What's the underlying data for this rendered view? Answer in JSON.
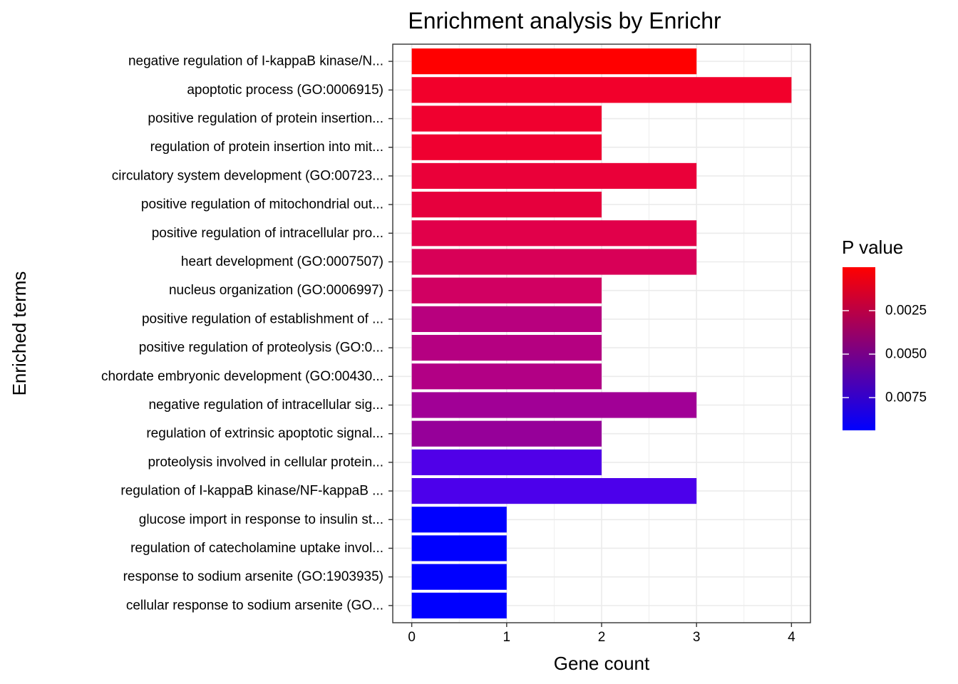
{
  "chart_data": {
    "type": "bar",
    "orientation": "horizontal",
    "title": "Enrichment analysis by Enrichr",
    "xlabel": "Gene count",
    "ylabel": "Enriched terms",
    "xlim": [
      -0.2,
      4.2
    ],
    "xticks": [
      "0",
      "1",
      "2",
      "3",
      "4"
    ],
    "grid": true,
    "categories": [
      "negative regulation of I-kappaB kinase/N...",
      "apoptotic process (GO:0006915)",
      "positive regulation of protein insertion...",
      "regulation of protein insertion into mit...",
      "circulatory system development (GO:00723...",
      "positive regulation of mitochondrial out...",
      "positive regulation of intracellular pro...",
      "heart development (GO:0007507)",
      "nucleus organization (GO:0006997)",
      "positive regulation of establishment of ...",
      "positive regulation of proteolysis (GO:0...",
      "chordate embryonic development (GO:00430...",
      "negative regulation of intracellular sig...",
      "regulation of extrinsic apoptotic signal...",
      "proteolysis involved in cellular protein...",
      "regulation of I-kappaB kinase/NF-kappaB ...",
      "glucose import in response to insulin st...",
      "regulation of catecholamine uptake invol...",
      "response to sodium arsenite (GO:1903935)",
      "cellular response to sodium arsenite (GO..."
    ],
    "values": [
      3,
      4,
      2,
      2,
      3,
      2,
      3,
      3,
      2,
      2,
      2,
      2,
      3,
      2,
      2,
      3,
      1,
      1,
      1,
      1
    ],
    "colors": [
      "#ff0000",
      "#f2002b",
      "#f0002f",
      "#ef0030",
      "#ea0039",
      "#e6003d",
      "#e1004a",
      "#d80057",
      "#d10062",
      "#b8007e",
      "#b50081",
      "#b20085",
      "#a10096",
      "#960099",
      "#5000e8",
      "#4c00eb",
      "#0000ff",
      "#0000ff",
      "#0000ff",
      "#0000ff"
    ],
    "legend": {
      "title": "P value",
      "placement": "right",
      "low_color": "#ff0000",
      "high_color": "#0000ff",
      "labels": [
        "0.0025",
        "0.0050",
        "0.0075"
      ]
    }
  }
}
